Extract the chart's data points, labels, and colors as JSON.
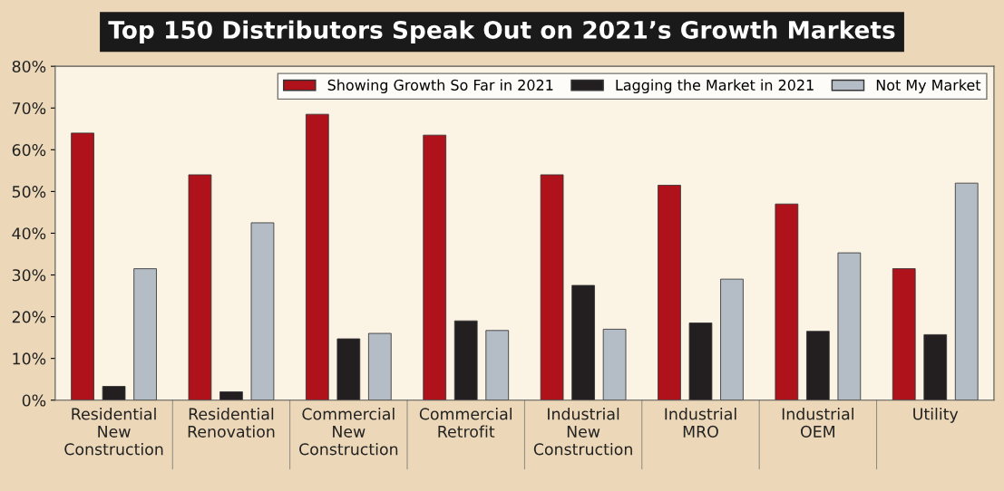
{
  "chart_data": {
    "type": "bar",
    "title": "Top 150 Distributors Speak Out on 2021’s Growth Markets",
    "categories": [
      "Residential\nNew\nConstruction",
      "Residential\nRenovation",
      "Commercial\nNew\nConstruction",
      "Commercial\nRetrofit",
      "Industrial\nNew\nConstruction",
      "Industrial\nMRO",
      "Industrial\nOEM",
      "Utility"
    ],
    "series": [
      {
        "name": "Showing Growth So Far in 2021",
        "color": "#b0121b",
        "values": [
          64,
          54,
          68.5,
          63.5,
          54,
          51.5,
          47,
          31.5
        ]
      },
      {
        "name": "Lagging the Market in 2021",
        "color": "#231f20",
        "values": [
          3.3,
          2,
          14.7,
          19,
          27.5,
          18.5,
          16.5,
          15.7
        ]
      },
      {
        "name": "Not My Market",
        "color": "#b4bcc6",
        "values": [
          31.5,
          42.5,
          16,
          16.7,
          17,
          29,
          35.3,
          52
        ]
      }
    ],
    "ylim": [
      0,
      80
    ],
    "yticks": [
      {
        "value": 0,
        "label": "0%"
      },
      {
        "value": 10,
        "label": "10%"
      },
      {
        "value": 20,
        "label": "20%"
      },
      {
        "value": 30,
        "label": "30%"
      },
      {
        "value": 40,
        "label": "40%"
      },
      {
        "value": 50,
        "label": "50%"
      },
      {
        "value": 60,
        "label": "60%"
      },
      {
        "value": 70,
        "label": "70%"
      },
      {
        "value": 80,
        "label": "80%"
      }
    ],
    "grid": false,
    "legend": "top right"
  }
}
